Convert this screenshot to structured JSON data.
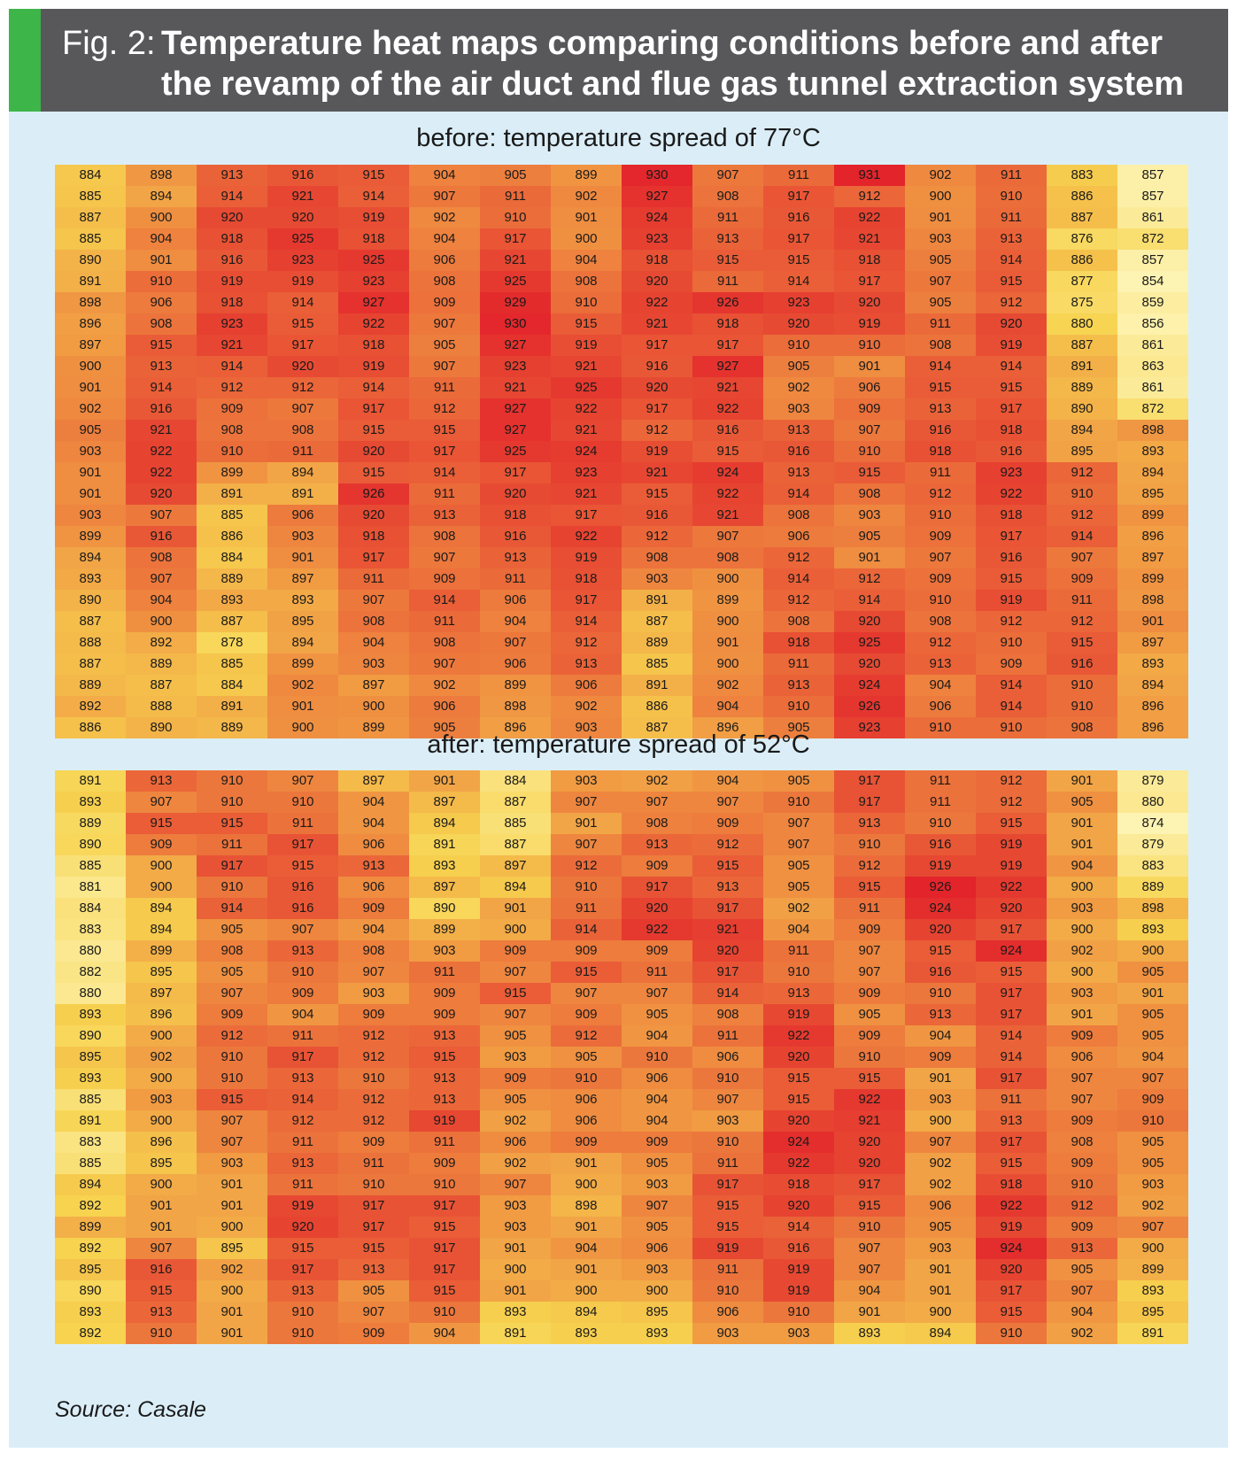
{
  "header": {
    "fig_label": "Fig. 2:",
    "title": "Temperature heat maps comparing conditions before and after the revamp of the air duct and flue gas tunnel extraction system"
  },
  "colors": {
    "header_bg": "#58585a",
    "accent": "#3eb549",
    "panel_bg": "#dbeef8",
    "scale_low": "#fdf3b2",
    "scale_mid": "#f7d34f",
    "scale_high": "#e3242b"
  },
  "source": "Source: Casale",
  "chart_data": [
    {
      "type": "heatmap",
      "title": "before: temperature spread of 77°C",
      "rows": [
        [
          884,
          898,
          913,
          916,
          915,
          904,
          905,
          899,
          930,
          907,
          911,
          931,
          902,
          911,
          883,
          857
        ],
        [
          885,
          894,
          914,
          921,
          914,
          907,
          911,
          902,
          927,
          908,
          917,
          912,
          900,
          910,
          886,
          857
        ],
        [
          887,
          900,
          920,
          920,
          919,
          902,
          910,
          901,
          924,
          911,
          916,
          922,
          901,
          911,
          887,
          861
        ],
        [
          885,
          904,
          918,
          925,
          918,
          904,
          917,
          900,
          923,
          913,
          917,
          921,
          903,
          913,
          876,
          872
        ],
        [
          890,
          901,
          916,
          923,
          925,
          906,
          921,
          904,
          918,
          915,
          915,
          918,
          905,
          914,
          886,
          857
        ],
        [
          891,
          910,
          919,
          919,
          923,
          908,
          925,
          908,
          920,
          911,
          914,
          917,
          907,
          915,
          877,
          854
        ],
        [
          898,
          906,
          918,
          914,
          927,
          909,
          929,
          910,
          922,
          926,
          923,
          920,
          905,
          912,
          875,
          859
        ],
        [
          896,
          908,
          923,
          915,
          922,
          907,
          930,
          915,
          921,
          918,
          920,
          919,
          911,
          920,
          880,
          856
        ],
        [
          897,
          915,
          921,
          917,
          918,
          905,
          927,
          919,
          917,
          917,
          910,
          910,
          908,
          919,
          887,
          861
        ],
        [
          900,
          913,
          914,
          920,
          919,
          907,
          923,
          921,
          916,
          927,
          905,
          901,
          914,
          914,
          891,
          863
        ],
        [
          901,
          914,
          912,
          912,
          914,
          911,
          921,
          925,
          920,
          921,
          902,
          906,
          915,
          915,
          889,
          861
        ],
        [
          902,
          916,
          909,
          907,
          917,
          912,
          927,
          922,
          917,
          922,
          903,
          909,
          913,
          917,
          890,
          872
        ],
        [
          905,
          921,
          908,
          908,
          915,
          915,
          927,
          921,
          912,
          916,
          913,
          907,
          916,
          918,
          894,
          898
        ],
        [
          903,
          922,
          910,
          911,
          920,
          917,
          925,
          924,
          919,
          915,
          916,
          910,
          918,
          916,
          895,
          893
        ],
        [
          901,
          922,
          899,
          894,
          915,
          914,
          917,
          923,
          921,
          924,
          913,
          915,
          911,
          923,
          912,
          894
        ],
        [
          901,
          920,
          891,
          891,
          926,
          911,
          920,
          921,
          915,
          922,
          914,
          908,
          912,
          922,
          910,
          895
        ],
        [
          903,
          907,
          885,
          906,
          920,
          913,
          918,
          917,
          916,
          921,
          908,
          903,
          910,
          918,
          912,
          899
        ],
        [
          899,
          916,
          886,
          903,
          918,
          908,
          916,
          922,
          912,
          907,
          906,
          905,
          909,
          917,
          914,
          896
        ],
        [
          894,
          908,
          884,
          901,
          917,
          907,
          913,
          919,
          908,
          908,
          912,
          901,
          907,
          916,
          907,
          897
        ],
        [
          893,
          907,
          889,
          897,
          911,
          909,
          911,
          918,
          903,
          900,
          914,
          912,
          909,
          915,
          909,
          899
        ],
        [
          890,
          904,
          893,
          893,
          907,
          914,
          906,
          917,
          891,
          899,
          912,
          914,
          910,
          919,
          911,
          898
        ],
        [
          887,
          900,
          887,
          895,
          908,
          911,
          904,
          914,
          887,
          900,
          908,
          920,
          908,
          912,
          912,
          901
        ],
        [
          888,
          892,
          878,
          894,
          904,
          908,
          907,
          912,
          889,
          901,
          918,
          925,
          912,
          910,
          915,
          897
        ],
        [
          887,
          889,
          885,
          899,
          903,
          907,
          906,
          913,
          885,
          900,
          911,
          920,
          913,
          909,
          916,
          893
        ],
        [
          889,
          887,
          884,
          902,
          897,
          902,
          899,
          906,
          891,
          902,
          913,
          924,
          904,
          914,
          910,
          894
        ],
        [
          892,
          888,
          891,
          901,
          900,
          906,
          898,
          902,
          886,
          904,
          910,
          926,
          906,
          914,
          910,
          896
        ],
        [
          886,
          890,
          889,
          900,
          899,
          905,
          896,
          903,
          887,
          896,
          905,
          923,
          910,
          910,
          908,
          896
        ]
      ]
    },
    {
      "type": "heatmap",
      "title": "after: temperature spread of 52°C",
      "rows": [
        [
          891,
          913,
          910,
          907,
          897,
          901,
          884,
          903,
          902,
          904,
          905,
          917,
          911,
          912,
          901,
          879
        ],
        [
          893,
          907,
          910,
          910,
          904,
          897,
          887,
          907,
          907,
          907,
          910,
          917,
          911,
          912,
          905,
          880
        ],
        [
          889,
          915,
          915,
          911,
          904,
          894,
          885,
          901,
          908,
          909,
          907,
          913,
          910,
          915,
          901,
          874
        ],
        [
          890,
          909,
          911,
          917,
          906,
          891,
          887,
          907,
          913,
          912,
          907,
          910,
          916,
          919,
          901,
          879
        ],
        [
          885,
          900,
          917,
          915,
          913,
          893,
          897,
          912,
          909,
          915,
          905,
          912,
          919,
          919,
          904,
          883
        ],
        [
          881,
          900,
          910,
          916,
          906,
          897,
          894,
          910,
          917,
          913,
          905,
          915,
          926,
          922,
          900,
          889
        ],
        [
          884,
          894,
          914,
          916,
          909,
          890,
          901,
          911,
          920,
          917,
          902,
          911,
          924,
          920,
          903,
          898
        ],
        [
          883,
          894,
          905,
          907,
          904,
          899,
          900,
          914,
          922,
          921,
          904,
          909,
          920,
          917,
          900,
          893
        ],
        [
          880,
          899,
          908,
          913,
          908,
          903,
          909,
          909,
          909,
          920,
          911,
          907,
          915,
          924,
          902,
          900
        ],
        [
          882,
          895,
          905,
          910,
          907,
          911,
          907,
          915,
          911,
          917,
          910,
          907,
          916,
          915,
          900,
          905
        ],
        [
          880,
          897,
          907,
          909,
          903,
          909,
          915,
          907,
          907,
          914,
          913,
          909,
          910,
          917,
          903,
          901
        ],
        [
          893,
          896,
          909,
          904,
          909,
          909,
          907,
          909,
          905,
          908,
          919,
          905,
          913,
          917,
          901,
          905
        ],
        [
          890,
          900,
          912,
          911,
          912,
          913,
          905,
          912,
          904,
          911,
          922,
          909,
          904,
          914,
          909,
          905
        ],
        [
          895,
          902,
          910,
          917,
          912,
          915,
          903,
          905,
          910,
          906,
          920,
          910,
          909,
          914,
          906,
          904
        ],
        [
          893,
          900,
          910,
          913,
          910,
          913,
          909,
          910,
          906,
          910,
          915,
          915,
          901,
          917,
          907,
          907
        ],
        [
          885,
          903,
          915,
          914,
          912,
          913,
          905,
          906,
          904,
          907,
          915,
          922,
          903,
          911,
          907,
          909
        ],
        [
          891,
          900,
          907,
          912,
          912,
          919,
          902,
          906,
          904,
          903,
          920,
          921,
          900,
          913,
          909,
          910
        ],
        [
          883,
          896,
          907,
          911,
          909,
          911,
          906,
          909,
          909,
          910,
          924,
          920,
          907,
          917,
          908,
          905
        ],
        [
          885,
          895,
          903,
          913,
          911,
          909,
          902,
          901,
          905,
          911,
          922,
          920,
          902,
          915,
          909,
          905
        ],
        [
          894,
          900,
          901,
          911,
          910,
          910,
          907,
          900,
          903,
          917,
          918,
          917,
          902,
          918,
          910,
          903
        ],
        [
          892,
          901,
          901,
          919,
          917,
          917,
          903,
          898,
          907,
          915,
          920,
          915,
          906,
          922,
          912,
          902
        ],
        [
          899,
          901,
          900,
          920,
          917,
          915,
          903,
          901,
          905,
          915,
          914,
          910,
          905,
          919,
          909,
          907
        ],
        [
          892,
          907,
          895,
          915,
          915,
          917,
          901,
          904,
          906,
          919,
          916,
          907,
          903,
          924,
          913,
          900
        ],
        [
          895,
          916,
          902,
          917,
          913,
          917,
          900,
          901,
          903,
          911,
          919,
          907,
          901,
          920,
          905,
          899
        ],
        [
          890,
          915,
          900,
          913,
          905,
          915,
          901,
          900,
          900,
          910,
          919,
          904,
          901,
          917,
          907,
          893
        ],
        [
          893,
          913,
          901,
          910,
          907,
          910,
          893,
          894,
          895,
          906,
          910,
          901,
          900,
          915,
          904,
          895
        ],
        [
          892,
          910,
          901,
          910,
          909,
          904,
          891,
          893,
          893,
          903,
          903,
          893,
          894,
          910,
          902,
          891
        ]
      ]
    }
  ]
}
